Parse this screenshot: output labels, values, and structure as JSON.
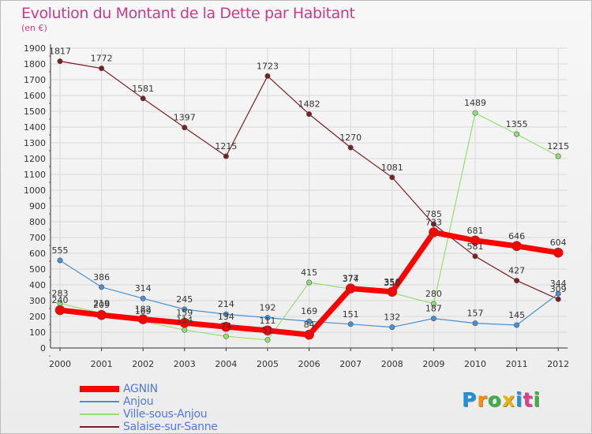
{
  "title": "Evolution du Montant de la Dette par Habitant",
  "unit": "(en €)",
  "logo": [
    "P",
    "r",
    "o",
    "x",
    "i",
    "t",
    "i"
  ],
  "logo_colors": [
    "#1e90e0",
    "#ff8c00",
    "#3cb043",
    "#e8b400",
    "#1e90e0",
    "#e03c8c",
    "#3cb043"
  ],
  "chart_data": {
    "type": "line",
    "title": "Evolution du Montant de la Dette par Habitant",
    "ylabel": "(en €)",
    "xlabel": "",
    "ylim": [
      0,
      1900
    ],
    "yticks": [
      0,
      100,
      200,
      300,
      400,
      500,
      600,
      700,
      800,
      900,
      1000,
      1100,
      1200,
      1300,
      1400,
      1500,
      1600,
      1700,
      1800,
      1900
    ],
    "categories": [
      "2000",
      "2001",
      "2002",
      "2003",
      "2004",
      "2005",
      "2006",
      "2007",
      "2008",
      "2009",
      "2010",
      "2011",
      "2012"
    ],
    "series": [
      {
        "name": "Salaise-sur-Sanne",
        "color": "#7a1f25",
        "line_width": 1.2,
        "marker": 3.2,
        "values": [
          1817,
          1772,
          1581,
          1397,
          1215,
          1723,
          1482,
          1270,
          1081,
          785,
          581,
          427,
          309
        ]
      },
      {
        "name": "Anjou",
        "color": "#4a8fd0",
        "line_width": 1.2,
        "marker": 3.2,
        "values": [
          555,
          386,
          314,
          245,
          214,
          192,
          169,
          151,
          132,
          187,
          157,
          145,
          344
        ]
      },
      {
        "name": "Ville-sous-Anjou",
        "color": "#92e072",
        "line_width": 1.2,
        "marker": 3.2,
        "values": [
          283,
          219,
          169,
          114,
          74,
          51,
          415,
          374,
          350,
          280,
          1489,
          1355,
          1215
        ]
      },
      {
        "name": "AGNIN",
        "color": "#ff0000",
        "line_width": 7,
        "marker": 6,
        "values": [
          240,
          209,
          182,
          159,
          134,
          111,
          84,
          377,
          356,
          733,
          681,
          646,
          604
        ]
      }
    ],
    "legend": [
      {
        "name": "AGNIN",
        "color": "#ff0000",
        "width": 8
      },
      {
        "name": "Anjou",
        "color": "#4a8fd0",
        "width": 1.5
      },
      {
        "name": "Ville-sous-Anjou",
        "color": "#92e072",
        "width": 1.5
      },
      {
        "name": "Salaise-sur-Sanne",
        "color": "#7a1f25",
        "width": 1.5
      }
    ]
  }
}
